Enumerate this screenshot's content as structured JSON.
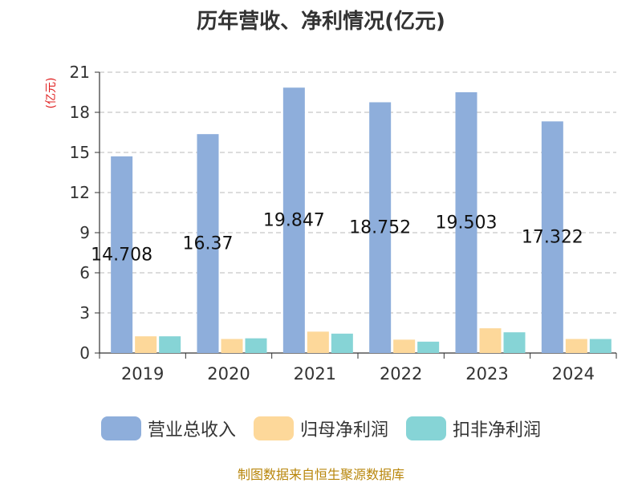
{
  "chart_data": {
    "type": "bar",
    "title": "历年营收、净利情况(亿元)",
    "ylabel": "(亿元)",
    "xlabel": "",
    "categories": [
      "2019",
      "2020",
      "2021",
      "2022",
      "2023",
      "2024"
    ],
    "ylim": [
      0,
      21
    ],
    "yticks": [
      0,
      3,
      6,
      9,
      12,
      15,
      18,
      21
    ],
    "grid": true,
    "legend_position": "bottom",
    "series": [
      {
        "name": "营业总收入",
        "color": "#8eaedb",
        "values": [
          14.708,
          16.37,
          19.847,
          18.752,
          19.503,
          17.322
        ],
        "labels": [
          "14.708",
          "16.37",
          "19.847",
          "18.752",
          "19.503",
          "17.322"
        ]
      },
      {
        "name": "归母净利润",
        "color": "#fdd89a",
        "values": [
          1.25,
          1.05,
          1.6,
          1.0,
          1.85,
          1.05
        ]
      },
      {
        "name": "扣非净利润",
        "color": "#86d4d6",
        "values": [
          1.25,
          1.1,
          1.45,
          0.85,
          1.55,
          1.05
        ]
      }
    ]
  },
  "source": "制图数据来自恒生聚源数据库"
}
